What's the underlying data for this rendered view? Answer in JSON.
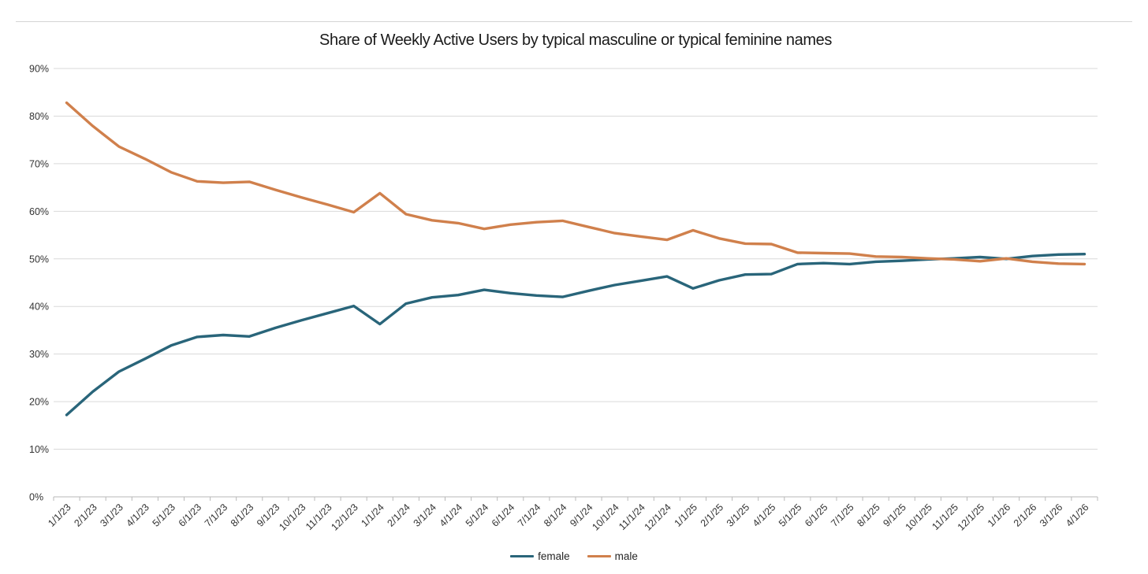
{
  "chart_data": {
    "type": "line",
    "title": "Share of Weekly Active Users by typical masculine or typical feminine names",
    "xlabel": "",
    "ylabel": "",
    "ylim": [
      0,
      90
    ],
    "ytick_values": [
      0,
      10,
      20,
      30,
      40,
      50,
      60,
      70,
      80,
      90
    ],
    "ytick_labels": [
      "0%",
      "10%",
      "20%",
      "30%",
      "40%",
      "50%",
      "60%",
      "70%",
      "80%",
      "90%"
    ],
    "grid": "horizontal-only",
    "legend_position": "bottom-center",
    "x": [
      "1/1/23",
      "2/1/23",
      "3/1/23",
      "4/1/23",
      "5/1/23",
      "6/1/23",
      "7/1/23",
      "8/1/23",
      "9/1/23",
      "10/1/23",
      "11/1/23",
      "12/1/23",
      "1/1/24",
      "2/1/24",
      "3/1/24",
      "4/1/24",
      "5/1/24",
      "6/1/24",
      "7/1/24",
      "8/1/24",
      "9/1/24",
      "10/1/24",
      "11/1/24",
      "12/1/24",
      "1/1/25",
      "2/1/25",
      "3/1/25",
      "4/1/25",
      "5/1/25",
      "6/1/25",
      "7/1/25",
      "8/1/25",
      "9/1/25",
      "10/1/25",
      "11/1/25",
      "12/1/25",
      "1/1/26",
      "2/1/26",
      "3/1/26",
      "4/1/26"
    ],
    "series": [
      {
        "name": "female",
        "color": "#29657a",
        "values": [
          17.2,
          22.1,
          26.3,
          29.0,
          31.8,
          33.6,
          34.0,
          33.7,
          35.5,
          37.1,
          38.6,
          40.1,
          36.3,
          40.6,
          41.9,
          42.4,
          43.5,
          42.8,
          42.3,
          42.0,
          43.3,
          44.5,
          45.4,
          46.3,
          43.8,
          45.5,
          46.7,
          46.8,
          48.9,
          49.1,
          48.9,
          49.4,
          49.6,
          49.9,
          50.1,
          50.4,
          50.0,
          50.6,
          50.9,
          51.0
        ]
      },
      {
        "name": "male",
        "color": "#d0804c",
        "values": [
          82.8,
          77.9,
          73.6,
          71.0,
          68.2,
          66.3,
          66.0,
          66.2,
          64.5,
          62.9,
          61.4,
          59.8,
          63.8,
          59.4,
          58.1,
          57.5,
          56.3,
          57.2,
          57.7,
          58.0,
          56.7,
          55.4,
          54.7,
          54.0,
          56.0,
          54.3,
          53.2,
          53.1,
          51.3,
          51.2,
          51.1,
          50.5,
          50.4,
          50.1,
          49.9,
          49.5,
          50.1,
          49.4,
          49.0,
          48.9
        ]
      }
    ],
    "colors": {
      "gridline": "#d9d9d9",
      "axis": "#b8b8b8",
      "tick": "#b8b8b8",
      "axis_label": "#333333",
      "title": "#1a1a1a",
      "divider": "#d4d4d4"
    }
  },
  "legend": {
    "female_label": "female",
    "male_label": "male"
  }
}
